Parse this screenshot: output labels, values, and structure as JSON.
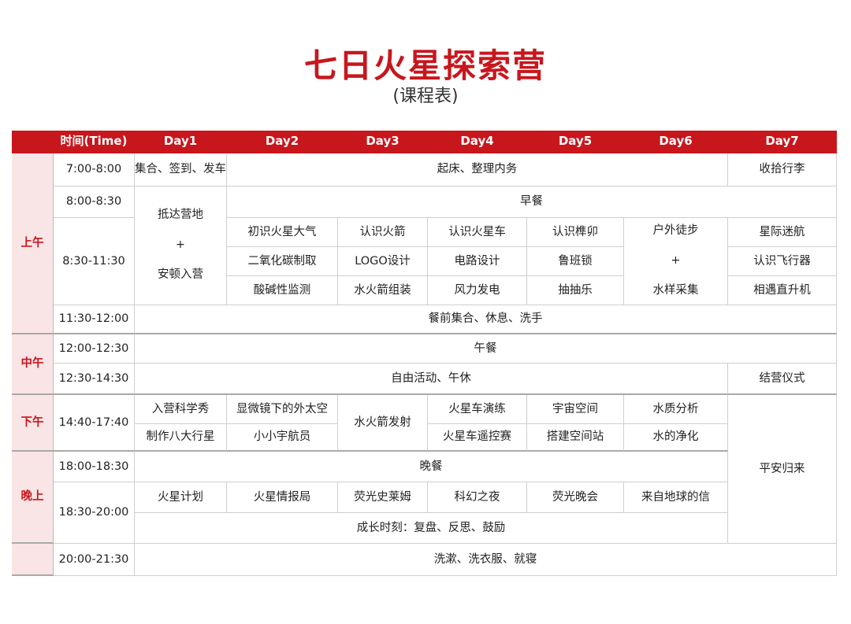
{
  "title": "七日火星探索营",
  "subtitle": "(课程表)",
  "accent_color": "#c8161d",
  "header": [
    "",
    "时间(Time)",
    "Day1",
    "Day2",
    "Day3",
    "Day4",
    "Day5",
    "Day6",
    "Day7"
  ],
  "periods": {
    "morning": "上午",
    "noon": "中午",
    "afternoon": "下午",
    "evening": "晚上",
    "night": ""
  },
  "times": {
    "t1": "7:00-8:00",
    "t2": "8:00-8:30",
    "t3": "8:30-11:30",
    "t4": "11:30-12:00",
    "t5": "12:00-12:30",
    "t6": "12:30-14:30",
    "t7": "14:40-17:40",
    "t8": "18:00-18:30",
    "t9": "18:30-20:00",
    "t10": "20:00-21:30"
  },
  "cells": {
    "d1_gather": "集合、签到、发车",
    "wakeup": "起床、整理内务",
    "pack": "收拾行李",
    "d1_arrive": "抵达营地\n+\n安顿入营",
    "breakfast": "早餐",
    "d2_a": "初识火星大气",
    "d2_b": "二氧化碳制取",
    "d2_c": "酸碱性监测",
    "d3_a": "认识火箭",
    "d3_b": "LOGO设计",
    "d3_c": "水火箭组装",
    "d4_a": "认识火星车",
    "d4_b": "电路设计",
    "d4_c": "风力发电",
    "d5_a": "认识榫卯",
    "d5_b": "鲁班锁",
    "d5_c": "抽抽乐",
    "d6_morning": "户外徒步\n+\n水样采集",
    "d7_a": "星际迷航",
    "d7_b": "认识飞行器",
    "d7_c": "相遇直升机",
    "pre_lunch": "餐前集合、休息、洗手",
    "lunch": "午餐",
    "free": "自由活动、午休",
    "closing": "结营仪式",
    "pm_d1_a": "入营科学秀",
    "pm_d1_b": "制作八大行星",
    "pm_d2_a": "显微镜下的外太空",
    "pm_d2_b": "小小宇航员",
    "pm_d3": "水火箭发射",
    "pm_d4_a": "火星车演练",
    "pm_d4_b": "火星车遥控赛",
    "pm_d5_a": "宇宙空间",
    "pm_d5_b": "搭建空间站",
    "pm_d6_a": "水质分析",
    "pm_d6_b": "水的净化",
    "home": "平安归来",
    "dinner": "晚餐",
    "ev_d1": "火星计划",
    "ev_d2": "火星情报局",
    "ev_d3": "荧光史莱姆",
    "ev_d4": "科幻之夜",
    "ev_d5": "荧光晚会",
    "ev_d6": "来自地球的信",
    "growth": "成长时刻：复盘、反思、鼓励",
    "bedtime": "洗漱、洗衣服、就寝"
  }
}
